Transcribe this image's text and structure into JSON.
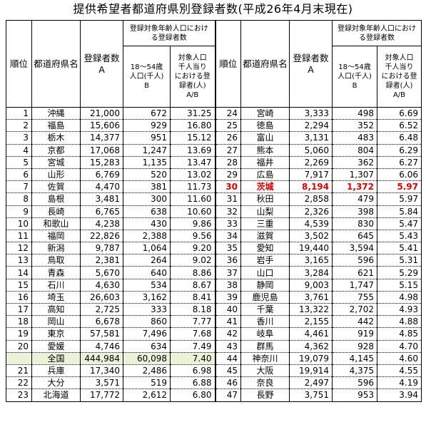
{
  "title": "提供希望者都道府県別登録者数(平成26年4月末現在)",
  "headers": {
    "rank": "順位",
    "pref": "都道府県名",
    "count": "登録者数\nA",
    "group": "登録対象年齢人口における登録者数",
    "pop": "18～54歳\n人口(千人)\nB",
    "ratio": "対象人口\n千人当り\nにおける登\n録者(人)\nA/B"
  },
  "left_rows": [
    {
      "rank": "1",
      "pref": "沖縄",
      "count": "21,000",
      "pop": "672",
      "ratio": "31.25"
    },
    {
      "rank": "2",
      "pref": "福島",
      "count": "15,606",
      "pop": "929",
      "ratio": "16.80"
    },
    {
      "rank": "3",
      "pref": "栃木",
      "count": "14,377",
      "pop": "951",
      "ratio": "15.12"
    },
    {
      "rank": "4",
      "pref": "京都",
      "count": "17,068",
      "pop": "1,247",
      "ratio": "13.69"
    },
    {
      "rank": "5",
      "pref": "宮城",
      "count": "15,283",
      "pop": "1,135",
      "ratio": "13.47"
    },
    {
      "rank": "6",
      "pref": "山形",
      "count": "6,769",
      "pop": "520",
      "ratio": "13.02"
    },
    {
      "rank": "7",
      "pref": "佐賀",
      "count": "4,470",
      "pop": "381",
      "ratio": "11.73"
    },
    {
      "rank": "8",
      "pref": "島根",
      "count": "3,481",
      "pop": "300",
      "ratio": "11.60"
    },
    {
      "rank": "9",
      "pref": "長崎",
      "count": "6,765",
      "pop": "638",
      "ratio": "10.60"
    },
    {
      "rank": "10",
      "pref": "和歌山",
      "count": "4,238",
      "pop": "430",
      "ratio": "9.86"
    },
    {
      "rank": "11",
      "pref": "福岡",
      "count": "22,826",
      "pop": "2,388",
      "ratio": "9.56"
    },
    {
      "rank": "12",
      "pref": "新潟",
      "count": "9,787",
      "pop": "1,064",
      "ratio": "9.20"
    },
    {
      "rank": "13",
      "pref": "鳥取",
      "count": "2,381",
      "pop": "264",
      "ratio": "9.02"
    },
    {
      "rank": "14",
      "pref": "青森",
      "count": "5,670",
      "pop": "640",
      "ratio": "8.86"
    },
    {
      "rank": "15",
      "pref": "石川",
      "count": "4,630",
      "pop": "534",
      "ratio": "8.67"
    },
    {
      "rank": "16",
      "pref": "埼玉",
      "count": "26,603",
      "pop": "3,162",
      "ratio": "8.41"
    },
    {
      "rank": "17",
      "pref": "高知",
      "count": "2,725",
      "pop": "333",
      "ratio": "8.18"
    },
    {
      "rank": "18",
      "pref": "岡山",
      "count": "6,678",
      "pop": "860",
      "ratio": "7.77"
    },
    {
      "rank": "19",
      "pref": "東京",
      "count": "57,581",
      "pop": "7,496",
      "ratio": "7.68"
    },
    {
      "rank": "20",
      "pref": "愛媛",
      "count": "4,746",
      "pop": "634",
      "ratio": "7.49"
    },
    {
      "rank": "",
      "pref": "全国",
      "count": "444,984",
      "pop": "60,098",
      "ratio": "7.40",
      "total": true
    },
    {
      "rank": "21",
      "pref": "兵庫",
      "count": "17,340",
      "pop": "2,486",
      "ratio": "6.98"
    },
    {
      "rank": "22",
      "pref": "大分",
      "count": "3,571",
      "pop": "519",
      "ratio": "6.88"
    },
    {
      "rank": "23",
      "pref": "北海道",
      "count": "17,772",
      "pop": "2,612",
      "ratio": "6.80"
    }
  ],
  "right_rows": [
    {
      "rank": "24",
      "pref": "宮崎",
      "count": "3,333",
      "pop": "498",
      "ratio": "6.69"
    },
    {
      "rank": "25",
      "pref": "徳島",
      "count": "2,294",
      "pop": "352",
      "ratio": "6.52"
    },
    {
      "rank": "26",
      "pref": "富山",
      "count": "3,131",
      "pop": "483",
      "ratio": "6.48"
    },
    {
      "rank": "27",
      "pref": "熊本",
      "count": "5,060",
      "pop": "804",
      "ratio": "6.29"
    },
    {
      "rank": "28",
      "pref": "福井",
      "count": "2,269",
      "pop": "362",
      "ratio": "6.27"
    },
    {
      "rank": "29",
      "pref": "広島",
      "count": "7,917",
      "pop": "1,307",
      "ratio": "6.06"
    },
    {
      "rank": "30",
      "pref": "茨城",
      "count": "8,194",
      "pop": "1,372",
      "ratio": "5.97",
      "highlight": true
    },
    {
      "rank": "31",
      "pref": "秋田",
      "count": "2,858",
      "pop": "479",
      "ratio": "5.97"
    },
    {
      "rank": "32",
      "pref": "山梨",
      "count": "2,326",
      "pop": "398",
      "ratio": "5.84"
    },
    {
      "rank": "33",
      "pref": "三重",
      "count": "4,539",
      "pop": "830",
      "ratio": "5.47"
    },
    {
      "rank": "34",
      "pref": "滋賀",
      "count": "3,502",
      "pop": "645",
      "ratio": "5.43"
    },
    {
      "rank": "35",
      "pref": "愛知",
      "count": "19,440",
      "pop": "3,594",
      "ratio": "5.41"
    },
    {
      "rank": "36",
      "pref": "岩手",
      "count": "3,165",
      "pop": "596",
      "ratio": "5.31"
    },
    {
      "rank": "37",
      "pref": "山口",
      "count": "3,284",
      "pop": "621",
      "ratio": "5.29"
    },
    {
      "rank": "38",
      "pref": "静岡",
      "count": "9,003",
      "pop": "1,747",
      "ratio": "5.15"
    },
    {
      "rank": "39",
      "pref": "鹿児島",
      "count": "3,761",
      "pop": "755",
      "ratio": "4.98"
    },
    {
      "rank": "40",
      "pref": "千葉",
      "count": "13,322",
      "pop": "2,702",
      "ratio": "4.93"
    },
    {
      "rank": "41",
      "pref": "香川",
      "count": "2,155",
      "pop": "442",
      "ratio": "4.88"
    },
    {
      "rank": "42",
      "pref": "岐阜",
      "count": "4,461",
      "pop": "919",
      "ratio": "4.85"
    },
    {
      "rank": "43",
      "pref": "群馬",
      "count": "4,362",
      "pop": "928",
      "ratio": "4.70"
    },
    {
      "rank": "44",
      "pref": "神奈川",
      "count": "19,079",
      "pop": "4,145",
      "ratio": "4.60"
    },
    {
      "rank": "45",
      "pref": "大阪",
      "count": "19,914",
      "pop": "4,375",
      "ratio": "4.55"
    },
    {
      "rank": "46",
      "pref": "奈良",
      "count": "2,497",
      "pop": "596",
      "ratio": "4.19"
    },
    {
      "rank": "47",
      "pref": "長野",
      "count": "3,751",
      "pop": "953",
      "ratio": "3.94"
    }
  ],
  "colors": {
    "highlight": "#e00000",
    "total_bg": "#eaf2d8"
  }
}
